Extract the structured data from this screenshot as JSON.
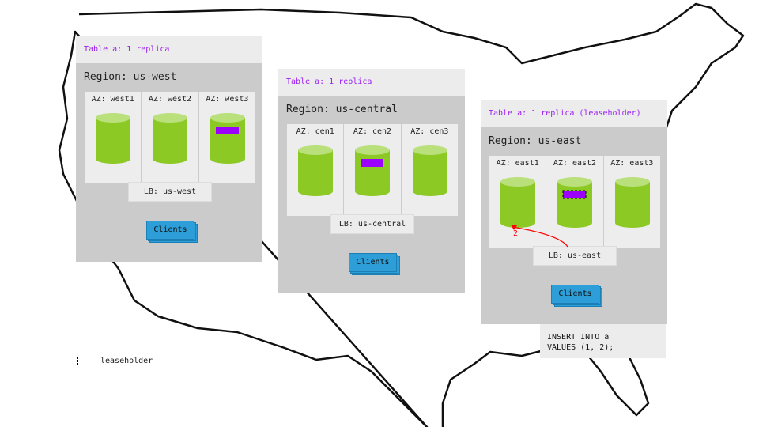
{
  "colors": {
    "replica": "#9b00ff",
    "db": "#8cc924",
    "db_top": "#b9e07a",
    "clients": "#2d9ed8",
    "request_arrow": "#ff0000"
  },
  "regions": [
    {
      "id": "west",
      "table_label": "Table a: 1 replica",
      "title": "Region: us-west",
      "azs": [
        "AZ: west1",
        "AZ: west2",
        "AZ: west3"
      ],
      "replica_az_index": 2,
      "leaseholder": false,
      "lb": "LB: us-west",
      "clients": "Clients"
    },
    {
      "id": "central",
      "table_label": "Table a: 1 replica",
      "title": "Region: us-central",
      "azs": [
        "AZ: cen1",
        "AZ: cen2",
        "AZ: cen3"
      ],
      "replica_az_index": 1,
      "leaseholder": false,
      "lb": "LB: us-central",
      "clients": "Clients"
    },
    {
      "id": "east",
      "table_label": "Table a: 1 replica (leaseholder)",
      "title": "Region: us-east",
      "azs": [
        "AZ: east1",
        "AZ: east2",
        "AZ: east3"
      ],
      "replica_az_index": 1,
      "leaseholder": true,
      "lb": "LB: us-east",
      "clients": "Clients"
    }
  ],
  "request_step": "2",
  "sql": "INSERT INTO a\nVALUES (1, 2);",
  "legend": {
    "label": "leaseholder"
  }
}
